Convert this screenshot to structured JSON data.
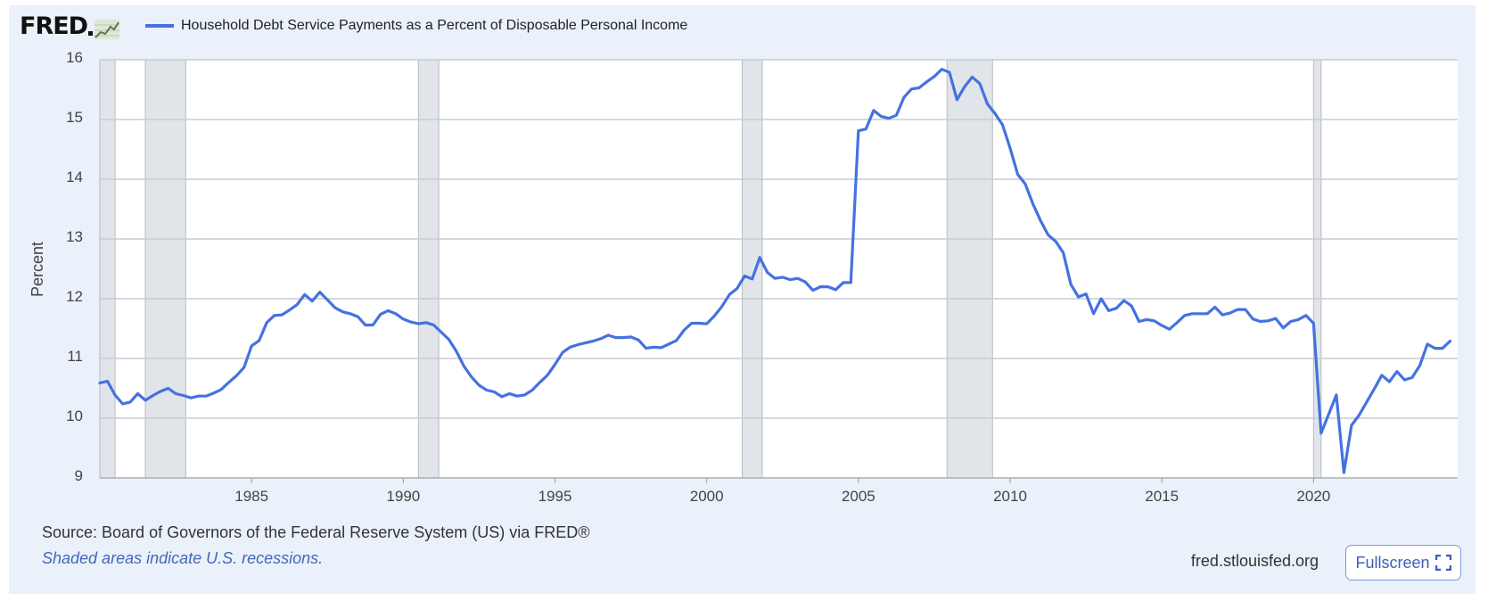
{
  "header": {
    "logo_text": "FRED",
    "legend_label": "Household Debt Service Payments as a Percent of Disposable Personal Income"
  },
  "footer": {
    "source": "Source: Board of Governors of the Federal Reserve System (US) via FRED®",
    "note": "Shaded areas indicate U.S. recessions.",
    "site": "fred.stlouisfed.org",
    "fullscreen_label": "Fullscreen"
  },
  "colors": {
    "series": "#4572e0",
    "background": "#eaf1fa",
    "recession": "#e1e5ea"
  },
  "icons": [
    "fred-logo-chart-icon",
    "fullscreen-icon"
  ],
  "chart_data": {
    "type": "line",
    "title": "",
    "xlabel": "",
    "ylabel": "Percent",
    "xlim": [
      1980.0,
      2024.75
    ],
    "ylim": [
      9,
      16
    ],
    "yticks": [
      9,
      10,
      11,
      12,
      13,
      14,
      15,
      16
    ],
    "xticks": [
      1985,
      1990,
      1995,
      2000,
      2005,
      2010,
      2015,
      2020
    ],
    "grid": true,
    "legend_position": "top-left",
    "recessions": [
      [
        1980.0,
        1980.5
      ],
      [
        1981.5,
        1982.83
      ],
      [
        1990.5,
        1991.17
      ],
      [
        2001.17,
        2001.83
      ],
      [
        2007.92,
        2009.42
      ],
      [
        2020.0,
        2020.25
      ]
    ],
    "series": [
      {
        "name": "Household Debt Service Payments as a Percent of Disposable Personal Income",
        "x": [
          1980.0,
          1980.25,
          1980.5,
          1980.75,
          1981.0,
          1981.25,
          1981.5,
          1981.75,
          1982.0,
          1982.25,
          1982.5,
          1982.75,
          1983.0,
          1983.25,
          1983.5,
          1983.75,
          1984.0,
          1984.25,
          1984.5,
          1984.75,
          1985.0,
          1985.25,
          1985.5,
          1985.75,
          1986.0,
          1986.25,
          1986.5,
          1986.75,
          1987.0,
          1987.25,
          1987.5,
          1987.75,
          1988.0,
          1988.25,
          1988.5,
          1988.75,
          1989.0,
          1989.25,
          1989.5,
          1989.75,
          1990.0,
          1990.25,
          1990.5,
          1990.75,
          1991.0,
          1991.25,
          1991.5,
          1991.75,
          1992.0,
          1992.25,
          1992.5,
          1992.75,
          1993.0,
          1993.25,
          1993.5,
          1993.75,
          1994.0,
          1994.25,
          1994.5,
          1994.75,
          1995.0,
          1995.25,
          1995.5,
          1995.75,
          1996.0,
          1996.25,
          1996.5,
          1996.75,
          1997.0,
          1997.25,
          1997.5,
          1997.75,
          1998.0,
          1998.25,
          1998.5,
          1998.75,
          1999.0,
          1999.25,
          1999.5,
          1999.75,
          2000.0,
          2000.25,
          2000.5,
          2000.75,
          2001.0,
          2001.25,
          2001.5,
          2001.75,
          2002.0,
          2002.25,
          2002.5,
          2002.75,
          2003.0,
          2003.25,
          2003.5,
          2003.75,
          2004.0,
          2004.25,
          2004.5,
          2004.75,
          2005.0,
          2005.25,
          2005.5,
          2005.75,
          2006.0,
          2006.25,
          2006.5,
          2006.75,
          2007.0,
          2007.25,
          2007.5,
          2007.75,
          2008.0,
          2008.25,
          2008.5,
          2008.75,
          2009.0,
          2009.25,
          2009.5,
          2009.75,
          2010.0,
          2010.25,
          2010.5,
          2010.75,
          2011.0,
          2011.25,
          2011.5,
          2011.75,
          2012.0,
          2012.25,
          2012.5,
          2012.75,
          2013.0,
          2013.25,
          2013.5,
          2013.75,
          2014.0,
          2014.25,
          2014.5,
          2014.75,
          2015.0,
          2015.25,
          2015.5,
          2015.75,
          2016.0,
          2016.25,
          2016.5,
          2016.75,
          2017.0,
          2017.25,
          2017.5,
          2017.75,
          2018.0,
          2018.25,
          2018.5,
          2018.75,
          2019.0,
          2019.25,
          2019.5,
          2019.75,
          2020.0,
          2020.25,
          2020.5,
          2020.75,
          2021.0,
          2021.25,
          2021.5,
          2021.75,
          2022.0,
          2022.25,
          2022.5,
          2022.75,
          2023.0,
          2023.25,
          2023.5,
          2023.75,
          2024.0,
          2024.25,
          2024.5
        ],
        "values": [
          10.59,
          10.62,
          10.39,
          10.24,
          10.27,
          10.41,
          10.3,
          10.38,
          10.45,
          10.5,
          10.41,
          10.38,
          10.34,
          10.37,
          10.37,
          10.42,
          10.48,
          10.6,
          10.71,
          10.85,
          11.21,
          11.3,
          11.6,
          11.72,
          11.73,
          11.81,
          11.9,
          12.07,
          11.96,
          12.11,
          11.98,
          11.85,
          11.78,
          11.75,
          11.7,
          11.56,
          11.56,
          11.74,
          11.8,
          11.75,
          11.66,
          11.61,
          11.58,
          11.6,
          11.56,
          11.44,
          11.32,
          11.12,
          10.87,
          10.69,
          10.55,
          10.47,
          10.44,
          10.36,
          10.41,
          10.37,
          10.39,
          10.47,
          10.6,
          10.72,
          10.9,
          11.1,
          11.19,
          11.23,
          11.26,
          11.29,
          11.33,
          11.39,
          11.35,
          11.35,
          11.36,
          11.31,
          11.17,
          11.19,
          11.18,
          11.24,
          11.3,
          11.47,
          11.59,
          11.59,
          11.58,
          11.71,
          11.87,
          12.07,
          12.17,
          12.38,
          12.33,
          12.69,
          12.44,
          12.34,
          12.36,
          12.32,
          12.34,
          12.28,
          12.14,
          12.2,
          12.2,
          12.15,
          12.27,
          12.27,
          14.81,
          14.84,
          15.15,
          15.05,
          15.02,
          15.07,
          15.37,
          15.51,
          15.53,
          15.63,
          15.72,
          15.84,
          15.79,
          15.33,
          15.55,
          15.71,
          15.6,
          15.26,
          15.1,
          14.91,
          14.52,
          14.08,
          13.92,
          13.59,
          13.31,
          13.07,
          12.96,
          12.77,
          12.24,
          12.03,
          12.08,
          11.75,
          12.0,
          11.8,
          11.84,
          11.97,
          11.88,
          11.62,
          11.65,
          11.63,
          11.55,
          11.49,
          11.6,
          11.72,
          11.75,
          11.75,
          11.75,
          11.86,
          11.73,
          11.76,
          11.82,
          11.82,
          11.66,
          11.62,
          11.63,
          11.67,
          11.51,
          11.62,
          11.65,
          11.72,
          11.59,
          9.75,
          10.07,
          10.39,
          9.09,
          9.88,
          10.05,
          10.27,
          10.49,
          10.72,
          10.61,
          10.78,
          10.64,
          10.68,
          10.88,
          11.24,
          11.17,
          11.17,
          11.29
        ]
      }
    ]
  }
}
